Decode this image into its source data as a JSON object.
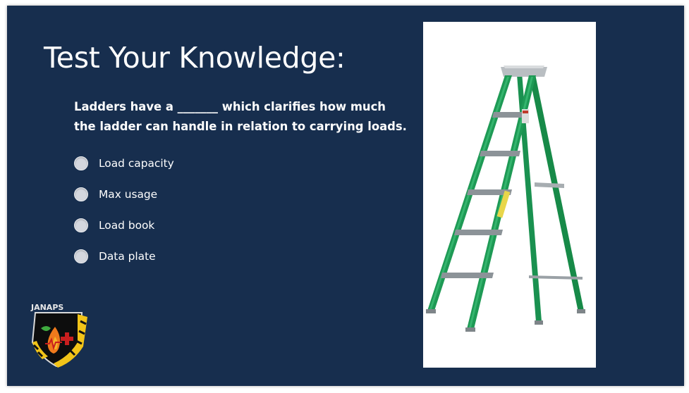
{
  "slide": {
    "title": "Test Your Knowledge:",
    "question_line1": "Ladders have a _______ which clarifies how much",
    "question_line2": "the ladder can handle in relation to carrying loads.",
    "options": [
      {
        "label": "Load capacity",
        "selected": false
      },
      {
        "label": "Max usage",
        "selected": false
      },
      {
        "label": "Load book",
        "selected": false
      },
      {
        "label": "Data plate",
        "selected": false
      }
    ]
  },
  "logo": {
    "text": "JANAPS"
  },
  "colors": {
    "background": "#172e4e",
    "ladder_green": "#1e9a55",
    "radio_fill": "#d4d7de"
  }
}
